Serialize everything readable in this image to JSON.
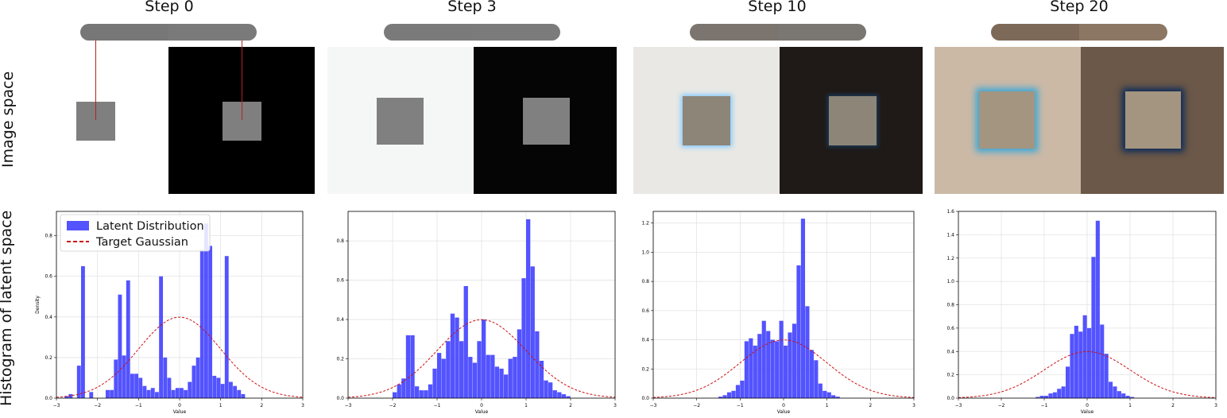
{
  "row_labels": {
    "image": "Image space",
    "hist": "Histogram of latent space"
  },
  "steps": [
    {
      "title": "Step 0",
      "pill_left": "#777777",
      "pill_right": "#7a7a7a",
      "img_left_bg": "#ffffff",
      "img_right_bg": "#000000",
      "square": "#7f7f7f"
    },
    {
      "title": "Step 3",
      "pill_left": "#7a7a7a",
      "pill_right": "#7b7b7b",
      "img_left_bg": "#f5f7f6",
      "img_right_bg": "#050505",
      "square": "#808080"
    },
    {
      "title": "Step 10",
      "pill_left": "#7b746f",
      "pill_right": "#7a7671",
      "img_left_bg": "#e9e8e4",
      "img_right_bg": "#1f1a17",
      "square": "#8c8578"
    },
    {
      "title": "Step 20",
      "pill_left": "#7d6957",
      "pill_right": "#8b7764",
      "img_left_bg": "#cbb9a6",
      "img_right_bg": "#6b5848",
      "square": "#a49580"
    }
  ],
  "chart_data": [
    {
      "type": "bar",
      "step": "Step 0",
      "xlabel": "Value",
      "ylabel": "Density",
      "xlim": [
        -3,
        3
      ],
      "ylim": [
        0,
        0.92
      ],
      "xticks": [
        -3,
        -2,
        -1,
        0,
        1,
        2,
        3
      ],
      "yticks": [
        0.0,
        0.2,
        0.4,
        0.6,
        0.8
      ],
      "grid": true,
      "legend": {
        "placement": "top-left",
        "entries": [
          "Latent Distribution",
          "Target Gaussian"
        ]
      },
      "bin_start": -2.8,
      "bin_width": 0.1,
      "values": [
        0.01,
        0.02,
        0.0,
        0.16,
        0.65,
        0.0,
        0.03,
        0.0,
        0.0,
        0.0,
        0.04,
        0.04,
        0.19,
        0.51,
        0.21,
        0.58,
        0.12,
        0.12,
        0.1,
        0.06,
        0.04,
        0.05,
        0.03,
        0.6,
        0.2,
        0.1,
        0.04,
        0.05,
        0.05,
        0.04,
        0.08,
        0.16,
        0.2,
        0.73,
        0.86,
        0.75,
        0.11,
        0.1,
        0.07,
        0.7,
        0.08,
        0.06,
        0.04,
        0.02
      ]
    },
    {
      "type": "bar",
      "step": "Step 3",
      "xlabel": "Value",
      "ylabel": "",
      "xlim": [
        -3,
        3
      ],
      "ylim": [
        0,
        0.95
      ],
      "xticks": [
        -3,
        -2,
        -1,
        0,
        1,
        2,
        3
      ],
      "yticks": [
        0.0,
        0.2,
        0.4,
        0.6,
        0.8
      ],
      "grid": true,
      "legend": null,
      "bin_start": -2.0,
      "bin_width": 0.1,
      "values": [
        0.03,
        0.07,
        0.1,
        0.32,
        0.32,
        0.06,
        0.04,
        0.04,
        0.07,
        0.15,
        0.23,
        0.2,
        0.29,
        0.43,
        0.41,
        0.29,
        0.57,
        0.21,
        0.18,
        0.29,
        0.4,
        0.22,
        0.22,
        0.16,
        0.15,
        0.12,
        0.2,
        0.21,
        0.35,
        0.61,
        0.91,
        0.67,
        0.34,
        0.19,
        0.09,
        0.08,
        0.04,
        0.03,
        0.02,
        0.01
      ]
    },
    {
      "type": "bar",
      "step": "Step 10",
      "xlabel": "Value",
      "ylabel": "",
      "xlim": [
        -3,
        3
      ],
      "ylim": [
        0,
        1.28
      ],
      "xticks": [
        -3,
        -2,
        -1,
        0,
        1,
        2,
        3
      ],
      "yticks": [
        0.0,
        0.2,
        0.4,
        0.6,
        0.8,
        1.0,
        1.2
      ],
      "grid": true,
      "legend": null,
      "bin_start": -1.5,
      "bin_width": 0.1,
      "values": [
        0.01,
        0.02,
        0.04,
        0.05,
        0.09,
        0.12,
        0.39,
        0.41,
        0.36,
        0.44,
        0.53,
        0.46,
        0.4,
        0.39,
        0.53,
        0.36,
        0.45,
        0.51,
        0.91,
        1.23,
        0.63,
        0.33,
        0.26,
        0.1,
        0.05,
        0.04,
        0.02,
        0.01
      ]
    },
    {
      "type": "bar",
      "step": "Step 20",
      "xlabel": "Value",
      "ylabel": "",
      "xlim": [
        -3,
        3
      ],
      "ylim": [
        0,
        1.6
      ],
      "xticks": [
        -3,
        -2,
        -1,
        0,
        1,
        2,
        3
      ],
      "yticks": [
        0.0,
        0.2,
        0.4,
        0.6,
        0.8,
        1.0,
        1.2,
        1.4,
        1.6
      ],
      "grid": true,
      "legend": null,
      "bin_start": -1.2,
      "bin_width": 0.1,
      "values": [
        0.01,
        0.02,
        0.02,
        0.04,
        0.05,
        0.08,
        0.1,
        0.27,
        0.55,
        0.62,
        0.57,
        0.71,
        0.6,
        1.21,
        1.52,
        0.63,
        0.38,
        0.14,
        0.1,
        0.06,
        0.04,
        0.02,
        0.01
      ]
    }
  ],
  "colors": {
    "bars": "#4040ff",
    "gaussian": "#cc1111",
    "red_marker": "#b22222"
  }
}
